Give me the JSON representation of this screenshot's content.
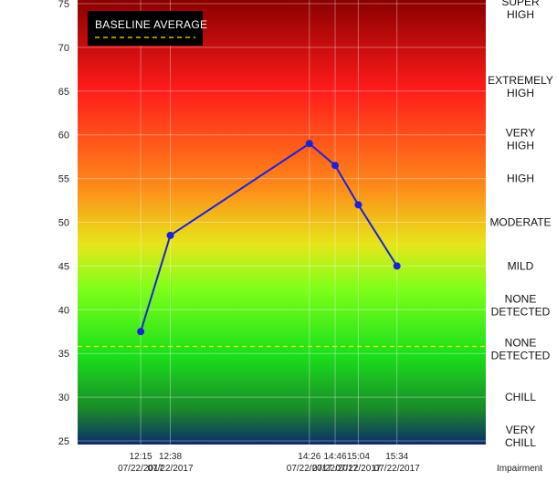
{
  "chart_data": {
    "type": "line",
    "ylim": [
      25,
      75
    ],
    "yticks": [
      "25",
      "30",
      "35",
      "40",
      "45",
      "50",
      "55",
      "60",
      "65",
      "70",
      "75"
    ],
    "x_times": [
      "12:15",
      "12:38",
      "14:26",
      "14:46",
      "15:04",
      "15:34"
    ],
    "x_dates": [
      "07/22/2017",
      "07/22/2017",
      "07/22/2017",
      "07/22/2017",
      "07/22/2017",
      "07/22/2017"
    ],
    "x_minutes": [
      735,
      758,
      866,
      886,
      904,
      934
    ],
    "values": [
      37.5,
      48.5,
      59,
      56.5,
      52,
      45
    ],
    "xlabel": "Impairment",
    "baseline": 35.8,
    "legend_label": "BASELINE AVERAGE",
    "grid": true,
    "legend_position": "top-left",
    "line_color": "#1a23d8",
    "baseline_color": "#ffe600",
    "gradient_colors": [
      "#8a0000",
      "#ff1a1a",
      "#ff8a1a",
      "#e6e61a",
      "#7fff1a",
      "#1adf1a",
      "#1a8a2a",
      "#0d2b6b"
    ],
    "zones": [
      {
        "y": 74.5,
        "lines": [
          "SUPER",
          "HIGH"
        ]
      },
      {
        "y": 65.5,
        "lines": [
          "EXTREMELY",
          "HIGH"
        ]
      },
      {
        "y": 59.5,
        "lines": [
          "VERY",
          "HIGH"
        ]
      },
      {
        "y": 55,
        "lines": [
          "HIGH"
        ]
      },
      {
        "y": 50,
        "lines": [
          "MODERATE"
        ]
      },
      {
        "y": 45,
        "lines": [
          "MILD"
        ]
      },
      {
        "y": 40.5,
        "lines": [
          "NONE",
          "DETECTED"
        ]
      },
      {
        "y": 35.5,
        "lines": [
          "NONE",
          "DETECTED"
        ]
      },
      {
        "y": 30,
        "lines": [
          "CHILL"
        ]
      },
      {
        "y": 25.5,
        "lines": [
          "VERY",
          "CHILL"
        ]
      }
    ]
  }
}
